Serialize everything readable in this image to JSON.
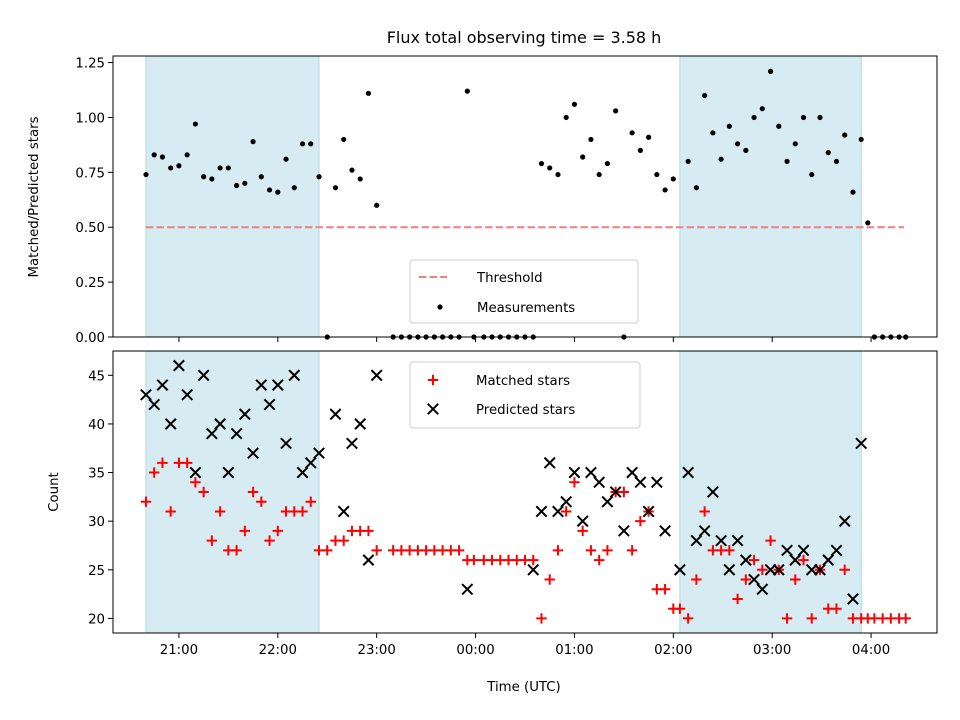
{
  "chart_data": [
    {
      "panel": "top",
      "type": "scatter",
      "title": "Flux total observing time = 3.58 h",
      "xlabel": "",
      "ylabel": "Matched/Predicted stars",
      "ylim": [
        0,
        1.28
      ],
      "yticks": [
        "0.00",
        "0.25",
        "0.50",
        "0.75",
        "1.00",
        "1.25"
      ],
      "ytick_values": [
        0,
        0.25,
        0.5,
        0.75,
        1.0,
        1.25
      ],
      "grid": false,
      "legend_position": "bottom-center",
      "threshold": {
        "name": "Threshold",
        "y": 0.5,
        "x_start": "20:40",
        "x_end": "04:20",
        "color": "#f08080"
      },
      "series": [
        {
          "name": "Measurements",
          "color": "#000000",
          "points": [
            [
              "20:40",
              0.74
            ],
            [
              "20:45",
              0.83
            ],
            [
              "20:50",
              0.82
            ],
            [
              "20:55",
              0.77
            ],
            [
              "21:00",
              0.78
            ],
            [
              "21:05",
              0.83
            ],
            [
              "21:10",
              0.97
            ],
            [
              "21:15",
              0.73
            ],
            [
              "21:20",
              0.72
            ],
            [
              "21:25",
              0.77
            ],
            [
              "21:30",
              0.77
            ],
            [
              "21:35",
              0.69
            ],
            [
              "21:40",
              0.7
            ],
            [
              "21:45",
              0.89
            ],
            [
              "21:50",
              0.73
            ],
            [
              "21:55",
              0.67
            ],
            [
              "22:00",
              0.66
            ],
            [
              "22:05",
              0.81
            ],
            [
              "22:10",
              0.68
            ],
            [
              "22:15",
              0.88
            ],
            [
              "22:20",
              0.88
            ],
            [
              "22:25",
              0.73
            ],
            [
              "22:30",
              0.0
            ],
            [
              "22:35",
              0.68
            ],
            [
              "22:40",
              0.9
            ],
            [
              "22:45",
              0.76
            ],
            [
              "22:50",
              0.72
            ],
            [
              "22:55",
              1.11
            ],
            [
              "23:00",
              0.6
            ],
            [
              "23:10",
              0.0
            ],
            [
              "23:15",
              0.0
            ],
            [
              "23:20",
              0.0
            ],
            [
              "23:25",
              0.0
            ],
            [
              "23:30",
              0.0
            ],
            [
              "23:35",
              0.0
            ],
            [
              "23:40",
              0.0
            ],
            [
              "23:45",
              0.0
            ],
            [
              "23:50",
              0.0
            ],
            [
              "23:55",
              1.12
            ],
            [
              "23:59",
              0.0
            ],
            [
              "00:05",
              0.0
            ],
            [
              "00:10",
              0.0
            ],
            [
              "00:15",
              0.0
            ],
            [
              "00:20",
              0.0
            ],
            [
              "00:25",
              0.0
            ],
            [
              "00:30",
              0.0
            ],
            [
              "00:35",
              0.0
            ],
            [
              "00:40",
              0.79
            ],
            [
              "00:45",
              0.77
            ],
            [
              "00:50",
              0.74
            ],
            [
              "00:55",
              1.0
            ],
            [
              "01:00",
              1.06
            ],
            [
              "01:05",
              0.82
            ],
            [
              "01:10",
              0.9
            ],
            [
              "01:15",
              0.74
            ],
            [
              "01:20",
              0.79
            ],
            [
              "01:25",
              1.03
            ],
            [
              "01:30",
              0.0
            ],
            [
              "01:35",
              0.93
            ],
            [
              "01:40",
              0.85
            ],
            [
              "01:45",
              0.91
            ],
            [
              "01:50",
              0.74
            ],
            [
              "01:55",
              0.67
            ],
            [
              "02:00",
              0.72
            ],
            [
              "02:09",
              0.8
            ],
            [
              "02:14",
              0.68
            ],
            [
              "02:19",
              1.1
            ],
            [
              "02:24",
              0.93
            ],
            [
              "02:29",
              0.81
            ],
            [
              "02:34",
              0.96
            ],
            [
              "02:39",
              0.88
            ],
            [
              "02:44",
              0.85
            ],
            [
              "02:49",
              1.0
            ],
            [
              "02:54",
              1.04
            ],
            [
              "02:59",
              1.21
            ],
            [
              "03:04",
              0.96
            ],
            [
              "03:09",
              0.8
            ],
            [
              "03:14",
              0.88
            ],
            [
              "03:19",
              1.0
            ],
            [
              "03:24",
              0.74
            ],
            [
              "03:29",
              1.0
            ],
            [
              "03:34",
              0.84
            ],
            [
              "03:39",
              0.8
            ],
            [
              "03:44",
              0.92
            ],
            [
              "03:49",
              0.66
            ],
            [
              "03:54",
              0.9
            ],
            [
              "03:58",
              0.52
            ],
            [
              "04:02",
              0.0
            ],
            [
              "04:07",
              0.0
            ],
            [
              "04:12",
              0.0
            ],
            [
              "04:17",
              0.0
            ],
            [
              "04:21",
              0.0
            ]
          ]
        }
      ]
    },
    {
      "panel": "bottom",
      "type": "scatter",
      "title": "",
      "xlabel": "Time (UTC)",
      "ylabel": "Count",
      "ylim": [
        18.5,
        47.5
      ],
      "yticks": [
        "20",
        "25",
        "30",
        "35",
        "40",
        "45"
      ],
      "ytick_values": [
        20,
        25,
        30,
        35,
        40,
        45
      ],
      "xticks": [
        "21:00",
        "22:00",
        "23:00",
        "00:00",
        "01:00",
        "02:00",
        "03:00",
        "04:00"
      ],
      "grid": false,
      "legend_position": "top-center",
      "series": [
        {
          "name": "Matched stars",
          "marker": "+",
          "color": "#ff0000",
          "points": [
            [
              "20:40",
              32
            ],
            [
              "20:45",
              35
            ],
            [
              "20:50",
              36
            ],
            [
              "20:55",
              31
            ],
            [
              "21:00",
              36
            ],
            [
              "21:05",
              36
            ],
            [
              "21:10",
              34
            ],
            [
              "21:15",
              33
            ],
            [
              "21:20",
              28
            ],
            [
              "21:25",
              31
            ],
            [
              "21:30",
              27
            ],
            [
              "21:35",
              27
            ],
            [
              "21:40",
              29
            ],
            [
              "21:45",
              33
            ],
            [
              "21:50",
              32
            ],
            [
              "21:55",
              28
            ],
            [
              "22:00",
              29
            ],
            [
              "22:05",
              31
            ],
            [
              "22:10",
              31
            ],
            [
              "22:15",
              31
            ],
            [
              "22:20",
              32
            ],
            [
              "22:25",
              27
            ],
            [
              "22:30",
              27
            ],
            [
              "22:35",
              28
            ],
            [
              "22:40",
              28
            ],
            [
              "22:45",
              29
            ],
            [
              "22:50",
              29
            ],
            [
              "22:55",
              29
            ],
            [
              "23:00",
              27
            ],
            [
              "23:10",
              27
            ],
            [
              "23:15",
              27
            ],
            [
              "23:20",
              27
            ],
            [
              "23:25",
              27
            ],
            [
              "23:30",
              27
            ],
            [
              "23:35",
              27
            ],
            [
              "23:40",
              27
            ],
            [
              "23:45",
              27
            ],
            [
              "23:50",
              27
            ],
            [
              "23:55",
              26
            ],
            [
              "23:59",
              26
            ],
            [
              "00:05",
              26
            ],
            [
              "00:10",
              26
            ],
            [
              "00:15",
              26
            ],
            [
              "00:20",
              26
            ],
            [
              "00:25",
              26
            ],
            [
              "00:30",
              26
            ],
            [
              "00:35",
              26
            ],
            [
              "00:40",
              20
            ],
            [
              "00:45",
              24
            ],
            [
              "00:50",
              27
            ],
            [
              "00:55",
              31
            ],
            [
              "01:00",
              34
            ],
            [
              "01:05",
              29
            ],
            [
              "01:10",
              27
            ],
            [
              "01:15",
              26
            ],
            [
              "01:20",
              27
            ],
            [
              "01:25",
              33
            ],
            [
              "01:30",
              33
            ],
            [
              "01:35",
              27
            ],
            [
              "01:40",
              30
            ],
            [
              "01:45",
              31
            ],
            [
              "01:50",
              23
            ],
            [
              "01:55",
              23
            ],
            [
              "02:00",
              21
            ],
            [
              "02:04",
              21
            ],
            [
              "02:09",
              20
            ],
            [
              "02:14",
              24
            ],
            [
              "02:19",
              31
            ],
            [
              "02:24",
              27
            ],
            [
              "02:29",
              27
            ],
            [
              "02:34",
              27
            ],
            [
              "02:39",
              22
            ],
            [
              "02:44",
              24
            ],
            [
              "02:49",
              26
            ],
            [
              "02:54",
              25
            ],
            [
              "02:59",
              28
            ],
            [
              "03:04",
              25
            ],
            [
              "03:09",
              20
            ],
            [
              "03:14",
              24
            ],
            [
              "03:19",
              26
            ],
            [
              "03:24",
              20
            ],
            [
              "03:29",
              25
            ],
            [
              "03:34",
              21
            ],
            [
              "03:39",
              21
            ],
            [
              "03:44",
              25
            ],
            [
              "03:49",
              20
            ],
            [
              "03:54",
              20
            ],
            [
              "03:58",
              20
            ],
            [
              "04:02",
              20
            ],
            [
              "04:07",
              20
            ],
            [
              "04:12",
              20
            ],
            [
              "04:17",
              20
            ],
            [
              "04:21",
              20
            ]
          ]
        },
        {
          "name": "Predicted stars",
          "marker": "x",
          "color": "#000000",
          "points": [
            [
              "20:40",
              43
            ],
            [
              "20:45",
              42
            ],
            [
              "20:50",
              44
            ],
            [
              "20:55",
              40
            ],
            [
              "21:00",
              46
            ],
            [
              "21:05",
              43
            ],
            [
              "21:10",
              35
            ],
            [
              "21:15",
              45
            ],
            [
              "21:20",
              39
            ],
            [
              "21:25",
              40
            ],
            [
              "21:30",
              35
            ],
            [
              "21:35",
              39
            ],
            [
              "21:40",
              41
            ],
            [
              "21:45",
              37
            ],
            [
              "21:50",
              44
            ],
            [
              "21:55",
              42
            ],
            [
              "22:00",
              44
            ],
            [
              "22:05",
              38
            ],
            [
              "22:10",
              45
            ],
            [
              "22:15",
              35
            ],
            [
              "22:20",
              36
            ],
            [
              "22:25",
              37
            ],
            [
              "22:35",
              41
            ],
            [
              "22:40",
              31
            ],
            [
              "22:45",
              38
            ],
            [
              "22:50",
              40
            ],
            [
              "22:55",
              26
            ],
            [
              "23:00",
              45
            ],
            [
              "23:55",
              23
            ],
            [
              "00:35",
              25
            ],
            [
              "00:40",
              31
            ],
            [
              "00:45",
              36
            ],
            [
              "00:50",
              31
            ],
            [
              "00:55",
              32
            ],
            [
              "01:00",
              35
            ],
            [
              "01:05",
              30
            ],
            [
              "01:10",
              35
            ],
            [
              "01:15",
              34
            ],
            [
              "01:20",
              32
            ],
            [
              "01:25",
              33
            ],
            [
              "01:30",
              29
            ],
            [
              "01:35",
              35
            ],
            [
              "01:40",
              34
            ],
            [
              "01:45",
              31
            ],
            [
              "01:50",
              34
            ],
            [
              "01:55",
              29
            ],
            [
              "02:04",
              25
            ],
            [
              "02:09",
              35
            ],
            [
              "02:14",
              28
            ],
            [
              "02:19",
              29
            ],
            [
              "02:24",
              33
            ],
            [
              "02:29",
              28
            ],
            [
              "02:34",
              25
            ],
            [
              "02:39",
              28
            ],
            [
              "02:44",
              26
            ],
            [
              "02:49",
              24
            ],
            [
              "02:54",
              23
            ],
            [
              "02:59",
              25
            ],
            [
              "03:04",
              25
            ],
            [
              "03:09",
              27
            ],
            [
              "03:14",
              26
            ],
            [
              "03:19",
              27
            ],
            [
              "03:24",
              25
            ],
            [
              "03:29",
              25
            ],
            [
              "03:34",
              26
            ],
            [
              "03:39",
              27
            ],
            [
              "03:44",
              30
            ],
            [
              "03:49",
              22
            ],
            [
              "03:54",
              38
            ]
          ]
        }
      ]
    }
  ],
  "shaded_intervals": [
    {
      "start": "20:40",
      "end": "22:25",
      "color": "#add8e6"
    },
    {
      "start": "02:04",
      "end": "03:54",
      "color": "#add8e6"
    }
  ],
  "x_range": [
    "20:20",
    "04:40"
  ]
}
